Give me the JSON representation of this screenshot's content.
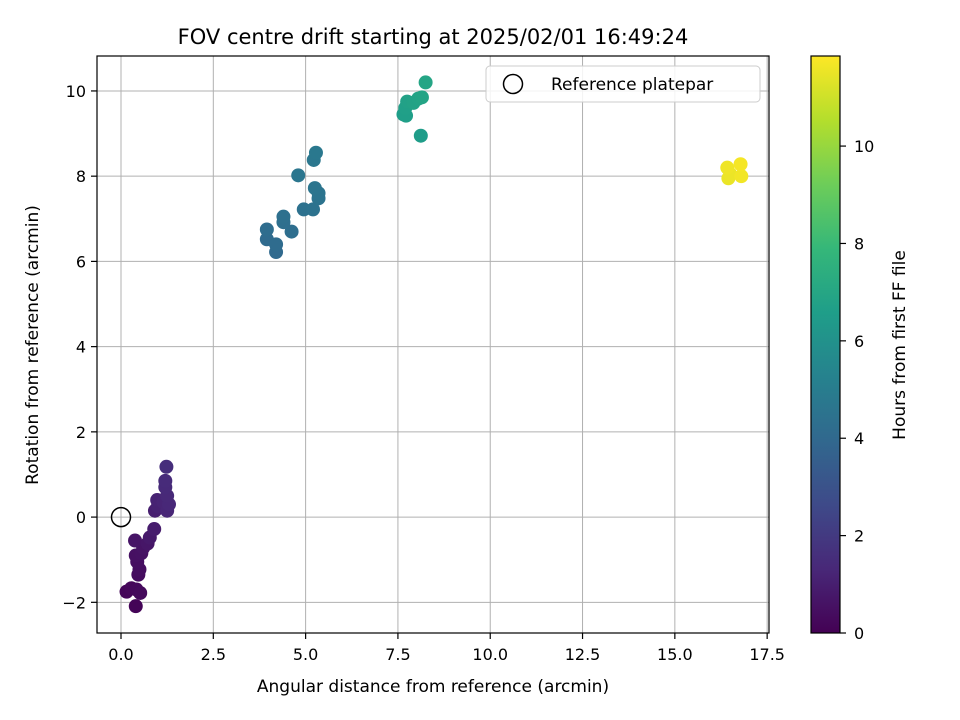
{
  "chart_data": {
    "type": "scatter",
    "title": "FOV centre drift starting at 2025/02/01 16:49:24",
    "xlabel": "Angular distance from reference (arcmin)",
    "ylabel": "Rotation from reference (arcmin)",
    "xlim": [
      -0.65,
      17.55
    ],
    "ylim": [
      -2.72,
      10.82
    ],
    "xticks": [
      0.0,
      2.5,
      5.0,
      7.5,
      10.0,
      12.5,
      15.0,
      17.5
    ],
    "xtick_labels": [
      "0.0",
      "2.5",
      "5.0",
      "7.5",
      "10.0",
      "12.5",
      "15.0",
      "17.5"
    ],
    "yticks": [
      -2,
      0,
      2,
      4,
      6,
      8,
      10
    ],
    "ytick_labels": [
      "−2",
      "0",
      "2",
      "4",
      "6",
      "8",
      "10"
    ],
    "grid": true,
    "colormap": "viridis",
    "colorbar": {
      "label": "Hours from first FF file",
      "range": [
        0,
        11.85
      ],
      "ticks": [
        0,
        2,
        4,
        6,
        8,
        10
      ],
      "tick_labels": [
        "0",
        "2",
        "4",
        "6",
        "8",
        "10"
      ]
    },
    "legend": {
      "position": "upper right",
      "entries": [
        {
          "label": "Reference platepar",
          "marker": "open-circle"
        }
      ]
    },
    "reference_point": {
      "x": 0.0,
      "y": 0.0
    },
    "points": [
      {
        "x": 0.4,
        "y": -2.09,
        "t": 0.1
      },
      {
        "x": 0.15,
        "y": -1.75,
        "t": 0.15
      },
      {
        "x": 0.28,
        "y": -1.67,
        "t": 0.2
      },
      {
        "x": 0.42,
        "y": -1.7,
        "t": 0.25
      },
      {
        "x": 0.52,
        "y": -1.78,
        "t": 0.3
      },
      {
        "x": 0.47,
        "y": -1.35,
        "t": 0.35
      },
      {
        "x": 0.5,
        "y": -1.23,
        "t": 0.4
      },
      {
        "x": 0.44,
        "y": -1.05,
        "t": 0.45
      },
      {
        "x": 0.4,
        "y": -0.9,
        "t": 0.5
      },
      {
        "x": 0.55,
        "y": -0.85,
        "t": 0.55
      },
      {
        "x": 0.6,
        "y": -0.72,
        "t": 0.6
      },
      {
        "x": 0.38,
        "y": -0.55,
        "t": 0.65
      },
      {
        "x": 0.72,
        "y": -0.62,
        "t": 0.7
      },
      {
        "x": 0.78,
        "y": -0.48,
        "t": 0.8
      },
      {
        "x": 0.9,
        "y": -0.28,
        "t": 0.9
      },
      {
        "x": 0.92,
        "y": 0.15,
        "t": 1.0
      },
      {
        "x": 1.0,
        "y": 0.25,
        "t": 1.1
      },
      {
        "x": 0.98,
        "y": 0.4,
        "t": 1.15
      },
      {
        "x": 1.15,
        "y": 0.35,
        "t": 1.2
      },
      {
        "x": 1.25,
        "y": 0.15,
        "t": 1.25
      },
      {
        "x": 1.3,
        "y": 0.3,
        "t": 1.3
      },
      {
        "x": 1.25,
        "y": 0.5,
        "t": 1.35
      },
      {
        "x": 1.2,
        "y": 0.7,
        "t": 1.4
      },
      {
        "x": 1.2,
        "y": 0.85,
        "t": 1.45
      },
      {
        "x": 1.23,
        "y": 1.18,
        "t": 1.55
      },
      {
        "x": 4.2,
        "y": 6.22,
        "t": 4.05
      },
      {
        "x": 3.95,
        "y": 6.52,
        "t": 4.1
      },
      {
        "x": 4.2,
        "y": 6.4,
        "t": 4.15
      },
      {
        "x": 3.95,
        "y": 6.75,
        "t": 4.2
      },
      {
        "x": 4.62,
        "y": 6.7,
        "t": 4.25
      },
      {
        "x": 4.4,
        "y": 6.92,
        "t": 4.3
      },
      {
        "x": 4.4,
        "y": 7.05,
        "t": 4.35
      },
      {
        "x": 4.95,
        "y": 7.22,
        "t": 4.4
      },
      {
        "x": 5.2,
        "y": 7.22,
        "t": 4.45
      },
      {
        "x": 5.35,
        "y": 7.48,
        "t": 4.5
      },
      {
        "x": 5.35,
        "y": 7.6,
        "t": 4.55
      },
      {
        "x": 5.25,
        "y": 7.72,
        "t": 4.6
      },
      {
        "x": 4.8,
        "y": 8.02,
        "t": 4.65
      },
      {
        "x": 5.22,
        "y": 8.38,
        "t": 4.7
      },
      {
        "x": 5.28,
        "y": 8.55,
        "t": 4.75
      },
      {
        "x": 8.12,
        "y": 8.95,
        "t": 6.55
      },
      {
        "x": 7.65,
        "y": 9.45,
        "t": 6.6
      },
      {
        "x": 7.72,
        "y": 9.42,
        "t": 6.65
      },
      {
        "x": 7.7,
        "y": 9.6,
        "t": 6.7
      },
      {
        "x": 7.75,
        "y": 9.75,
        "t": 6.75
      },
      {
        "x": 7.92,
        "y": 9.72,
        "t": 6.8
      },
      {
        "x": 8.05,
        "y": 9.82,
        "t": 6.85
      },
      {
        "x": 8.15,
        "y": 9.85,
        "t": 6.9
      },
      {
        "x": 8.25,
        "y": 10.2,
        "t": 6.95
      },
      {
        "x": 16.45,
        "y": 7.95,
        "t": 11.5
      },
      {
        "x": 16.5,
        "y": 8.05,
        "t": 11.55
      },
      {
        "x": 16.42,
        "y": 8.2,
        "t": 11.6
      },
      {
        "x": 16.8,
        "y": 8.0,
        "t": 11.65
      },
      {
        "x": 16.78,
        "y": 8.28,
        "t": 11.7
      }
    ]
  }
}
